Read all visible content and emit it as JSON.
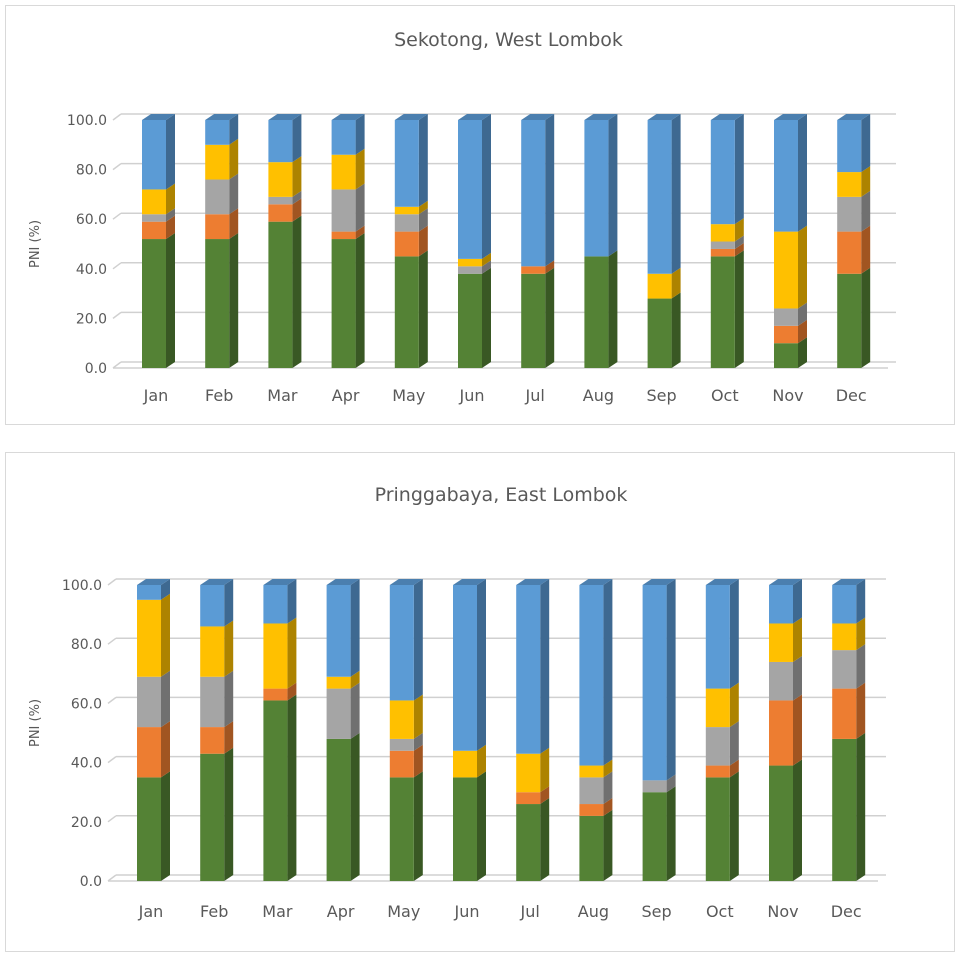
{
  "colors": {
    "green": "#548235",
    "orange": "#ed7d31",
    "gray": "#a5a5a5",
    "yellow": "#ffc000",
    "blue": "#5b9bd5"
  },
  "chart_data": [
    {
      "type": "bar",
      "stacked": true,
      "three_d": true,
      "title": "Sekotong, West Lombok",
      "ylabel": "PNI (%)",
      "xlabel": "",
      "ylim": [
        0,
        100
      ],
      "yticks": [
        "0.0",
        "20.0",
        "40.0",
        "60.0",
        "80.0",
        "100.0"
      ],
      "grid": true,
      "categories": [
        "Jan",
        "Feb",
        "Mar",
        "Apr",
        "May",
        "Jun",
        "Jul",
        "Aug",
        "Sep",
        "Oct",
        "Nov",
        "Dec"
      ],
      "series": [
        {
          "color": "#548235",
          "values": [
            52,
            52,
            59,
            52,
            45,
            38,
            38,
            45,
            28,
            45,
            10,
            38
          ]
        },
        {
          "color": "#ed7d31",
          "values": [
            7,
            10,
            7,
            3,
            10,
            0,
            3,
            0,
            0,
            3,
            7,
            17
          ]
        },
        {
          "color": "#a5a5a5",
          "values": [
            3,
            14,
            3,
            17,
            7,
            3,
            0,
            0,
            0,
            3,
            7,
            14
          ]
        },
        {
          "color": "#ffc000",
          "values": [
            10,
            14,
            14,
            14,
            3,
            3,
            0,
            0,
            10,
            7,
            31,
            10
          ]
        },
        {
          "color": "#5b9bd5",
          "values": [
            28,
            10,
            17,
            14,
            35,
            56,
            59,
            55,
            62,
            42,
            45,
            21
          ]
        }
      ]
    },
    {
      "type": "bar",
      "stacked": true,
      "three_d": true,
      "title": "Pringgabaya, East Lombok",
      "ylabel": "PNI (%)",
      "xlabel": "",
      "ylim": [
        0,
        100
      ],
      "yticks": [
        "0.0",
        "20.0",
        "40.0",
        "60.0",
        "80.0",
        "100.0"
      ],
      "grid": true,
      "categories": [
        "Jan",
        "Feb",
        "Mar",
        "Apr",
        "May",
        "Jun",
        "Jul",
        "Aug",
        "Sep",
        "Oct",
        "Nov",
        "Dec"
      ],
      "series": [
        {
          "color": "#548235",
          "values": [
            35,
            43,
            61,
            48,
            35,
            35,
            26,
            22,
            30,
            35,
            39,
            48
          ]
        },
        {
          "color": "#ed7d31",
          "values": [
            17,
            9,
            4,
            0,
            9,
            0,
            4,
            4,
            0,
            4,
            22,
            17
          ]
        },
        {
          "color": "#a5a5a5",
          "values": [
            17,
            17,
            0,
            17,
            4,
            0,
            0,
            9,
            4,
            13,
            13,
            13
          ]
        },
        {
          "color": "#ffc000",
          "values": [
            26,
            17,
            22,
            4,
            13,
            9,
            13,
            4,
            0,
            13,
            13,
            9
          ]
        },
        {
          "color": "#5b9bd5",
          "values": [
            5,
            14,
            13,
            31,
            39,
            56,
            57,
            61,
            66,
            35,
            13,
            13
          ]
        }
      ]
    }
  ]
}
